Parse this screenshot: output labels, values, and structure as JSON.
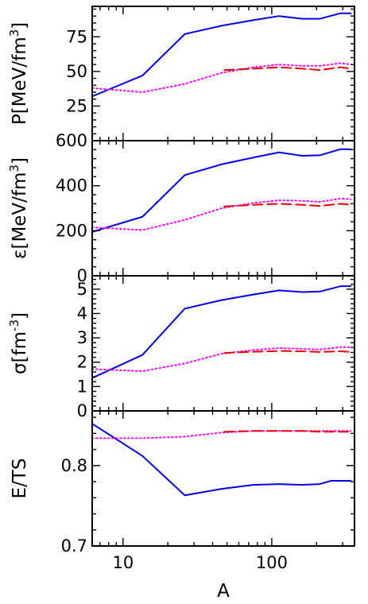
{
  "chart_data": {
    "type": "line",
    "xlabel": "A",
    "xscale": "log",
    "xlim": [
      6.2,
      360
    ],
    "xticks": [
      10,
      100
    ],
    "xtick_labels": [
      "10",
      "100"
    ],
    "series_styles": [
      {
        "id": "solid",
        "color": "#0000ee",
        "dash": "solid"
      },
      {
        "id": "dotted",
        "color": "#ff00ff",
        "dash": "dotted"
      },
      {
        "id": "dashed",
        "color": "#ee0000",
        "dash": "dashed"
      }
    ],
    "panels": [
      {
        "ylabel_main": "P[MeV/fm",
        "ylabel_sup": "3",
        "ylabel_tail": "]",
        "ylim": [
          0,
          97
        ],
        "yticks": [
          25,
          50,
          75
        ],
        "ytick_labels": [
          "25",
          "50",
          "75"
        ],
        "series": [
          {
            "style": "solid",
            "x": [
              6.2,
              13.5,
              26,
              46,
              75,
              112,
              160,
              210,
              290,
              340
            ],
            "y": [
              32,
              47,
              77,
              83,
              87,
              90,
              88,
              88,
              92,
              92
            ]
          },
          {
            "style": "dotted",
            "x": [
              6.2,
              13.5,
              26,
              46,
              75,
              112,
              160,
              210,
              290,
              340
            ],
            "y": [
              38,
              35,
              41,
              49,
              53,
              55,
              54,
              54,
              56,
              55
            ]
          },
          {
            "style": "dashed",
            "x": [
              48,
              75,
              112,
              160,
              210,
              290,
              340
            ],
            "y": [
              51,
              52,
              53,
              52,
              51,
              53,
              52
            ]
          }
        ]
      },
      {
        "ylabel_main": "ε[MeV/fm",
        "ylabel_sup": "3",
        "ylabel_tail": "]",
        "ylim": [
          0,
          600
        ],
        "yticks": [
          0,
          200,
          400,
          600
        ],
        "ytick_labels": [
          "0",
          "200",
          "400",
          "600"
        ],
        "series": [
          {
            "style": "solid",
            "x": [
              6.2,
              13.5,
              26,
              46,
              75,
              112,
              160,
              210,
              290,
              340
            ],
            "y": [
              195,
              262,
              447,
              495,
              525,
              548,
              533,
              535,
              562,
              562
            ]
          },
          {
            "style": "dotted",
            "x": [
              6.2,
              13.5,
              26,
              46,
              75,
              112,
              160,
              210,
              290,
              340
            ],
            "y": [
              215,
              203,
              248,
              300,
              323,
              335,
              333,
              328,
              343,
              340
            ]
          },
          {
            "style": "dashed",
            "x": [
              48,
              75,
              112,
              160,
              210,
              290,
              340
            ],
            "y": [
              308,
              315,
              320,
              315,
              310,
              320,
              315
            ]
          }
        ]
      },
      {
        "ylabel_main": "σ[fm",
        "ylabel_sup": "-3",
        "ylabel_tail": "]",
        "ylim": [
          0,
          5.55
        ],
        "yticks": [
          0,
          1,
          2,
          3,
          4,
          5
        ],
        "ytick_labels": [
          "0",
          "1",
          "2",
          "3",
          "4",
          "5"
        ],
        "series": [
          {
            "style": "solid",
            "x": [
              6.2,
              13.5,
              26,
              46,
              75,
              112,
              160,
              210,
              290,
              340
            ],
            "y": [
              1.35,
              2.3,
              4.2,
              4.55,
              4.78,
              4.95,
              4.88,
              4.9,
              5.12,
              5.12
            ]
          },
          {
            "style": "dotted",
            "x": [
              6.2,
              13.5,
              26,
              46,
              75,
              112,
              160,
              210,
              290,
              340
            ],
            "y": [
              1.72,
              1.63,
              1.95,
              2.35,
              2.5,
              2.58,
              2.55,
              2.52,
              2.62,
              2.62
            ]
          },
          {
            "style": "dashed",
            "x": [
              48,
              75,
              112,
              160,
              210,
              290,
              340
            ],
            "y": [
              2.38,
              2.43,
              2.46,
              2.45,
              2.42,
              2.45,
              2.42
            ]
          }
        ]
      },
      {
        "ylabel_main": "E/TS",
        "ylabel_sup": "",
        "ylabel_tail": "",
        "ylim": [
          0.7,
          0.868
        ],
        "yticks": [
          0.7,
          0.8
        ],
        "ytick_labels": [
          "0.7",
          "0.8"
        ],
        "series": [
          {
            "style": "solid",
            "x": [
              6.2,
              13.5,
              26,
              46,
              75,
              112,
              160,
              210,
              250,
              340
            ],
            "y": [
              0.852,
              0.812,
              0.763,
              0.771,
              0.776,
              0.777,
              0.776,
              0.777,
              0.781,
              0.781
            ]
          },
          {
            "style": "dotted",
            "x": [
              6.2,
              13.5,
              26,
              46,
              75,
              112,
              160,
              210,
              290,
              340
            ],
            "y": [
              0.834,
              0.834,
              0.836,
              0.841,
              0.843,
              0.843,
              0.843,
              0.843,
              0.843,
              0.843
            ]
          },
          {
            "style": "dashed",
            "x": [
              48,
              75,
              112,
              160,
              210,
              290,
              340
            ],
            "y": [
              0.842,
              0.843,
              0.843,
              0.843,
              0.842,
              0.842,
              0.842
            ]
          }
        ]
      }
    ]
  }
}
